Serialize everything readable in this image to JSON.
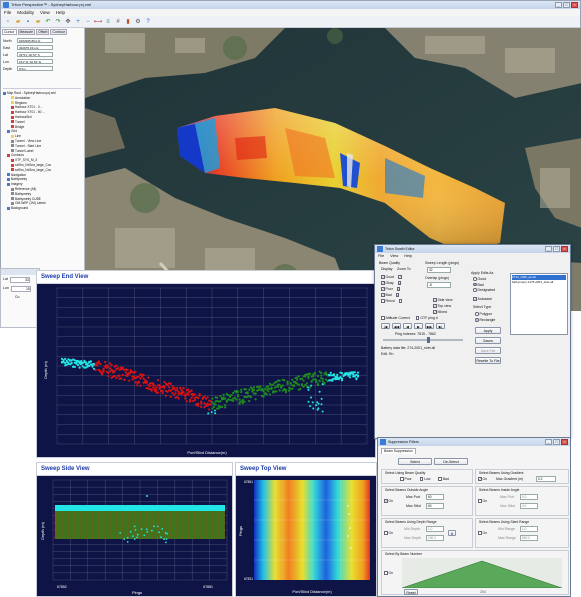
{
  "app": {
    "title": "Triton Perspective™ - SydneyHarbour.prj.xml",
    "menu": [
      "File",
      "Modality",
      "View",
      "Help"
    ],
    "toolbar_icons": [
      "new-icon",
      "open-icon",
      "save-icon",
      "folder-icon",
      "undo-icon",
      "redo-icon",
      "pan-icon",
      "zoom-in-icon",
      "zoom-out-icon",
      "measure-icon",
      "layers-icon",
      "grid-icon",
      "chart-icon",
      "settings-icon",
      "help-icon"
    ],
    "win_buttons": [
      "_",
      "□",
      "×"
    ]
  },
  "left_panel": {
    "tabs": [
      "Cursor",
      "Measure",
      "Offset",
      "Contour"
    ],
    "fields": [
      {
        "label": "North",
        "value": "6252905.89m N"
      },
      {
        "label": "East",
        "value": "332975.15m E"
      },
      {
        "label": "Lat",
        "value": "33°51' 18.70\" S"
      },
      {
        "label": "Lon",
        "value": "151°11' 40.62\" E"
      },
      {
        "label": "Depth",
        "value": "8.5m"
      }
    ],
    "tree": [
      {
        "text": "Map Root - SydneyHarbour.prj.xml",
        "color": "#4a78c8"
      },
      {
        "text": "Annotation",
        "color": "#f0d060"
      },
      {
        "text": "Regions",
        "color": "#f0d060"
      },
      {
        "text": "Harbour XT01 - 3 ...",
        "color": "#d04040"
      },
      {
        "text": "Harbour XT01 - 60 ...",
        "color": "#d04040"
      },
      {
        "text": "HarbourBrd",
        "color": "#d04040"
      },
      {
        "text": "Tunnel",
        "color": "#d04040"
      },
      {
        "text": "Bridge",
        "color": "#d04040"
      },
      {
        "text": "Grid",
        "color": "#4a78c8"
      },
      {
        "text": "Line",
        "color": "#f0d060"
      },
      {
        "text": "Tunnel - View Line",
        "color": "#888888"
      },
      {
        "text": "Tunnel - Start Line",
        "color": "#888888"
      },
      {
        "text": "Tunnel Label",
        "color": "#888888"
      },
      {
        "text": "Contours",
        "color": "#d04040"
      },
      {
        "text": "XTF_SYS_M_3",
        "color": "#d04040"
      },
      {
        "text": "sxf5m_NxSea_large_Cov",
        "color": "#d04040"
      },
      {
        "text": "sxf5m_NxSea_large_Cov",
        "color": "#d04040"
      },
      {
        "text": "Navigation",
        "color": "#4a78c8"
      },
      {
        "text": "Bathymetry",
        "color": "#4a78c8"
      },
      {
        "text": "Imagery",
        "color": "#4a78c8"
      },
      {
        "text": "Reference (All)",
        "color": "#888888"
      },
      {
        "text": "Bathymetry",
        "color": "#888888"
      },
      {
        "text": "Bathymetry CUBE",
        "color": "#888888"
      },
      {
        "text": "OM-WRF (1M) Latest",
        "color": "#888888"
      },
      {
        "text": "Background",
        "color": "#4a78c8"
      }
    ]
  },
  "bottom_left": {
    "rows": [
      {
        "label": "Lat",
        "value": "33"
      },
      {
        "label": "Lon",
        "value": "15"
      },
      {
        "label": "",
        "value": "Cu"
      }
    ]
  },
  "sweep_end": {
    "title": "Sweep End View",
    "ylabel": "Depth (m)",
    "xlabel": "Port/Stbd Distance(m)"
  },
  "sweep_side": {
    "title": "Sweep Side View",
    "ylabel": "Depth (m)",
    "xlabel": "Pings",
    "x_ticks": [
      "67852",
      "67881"
    ]
  },
  "sweep_top": {
    "title": "Sweep Top View",
    "ylabel": "Pings",
    "xlabel": "Port/Stbd Distance(m)",
    "y_ticks": [
      "67831",
      "67861"
    ]
  },
  "swath_editor": {
    "title": "Triton Swath Editor",
    "menu": [
      "File",
      "View",
      "Help"
    ],
    "beam_quality_label": "Beam Quality",
    "display_label": "Display",
    "zoom_label": "Zoom To",
    "qualities": [
      "Good",
      "Okay",
      "Poor",
      "Bad",
      "Rmvd"
    ],
    "sweep_length_label": "Sweep Length (pings)",
    "sweep_length_value": "32",
    "overlap_label": "Overlap (pings)",
    "overlap_value": "-8",
    "views": [
      "Side view",
      "Top view",
      "Mixed"
    ],
    "apply_label": "Apply Edits As",
    "apply_options": [
      "Good",
      "Bad",
      "Designated"
    ],
    "autosave_label": "Autosave",
    "select_type_label": "Select Type",
    "select_types": [
      "Polygon",
      "Rectangle"
    ],
    "buttons": [
      "Apply",
      "Saves",
      "Save File",
      "Rewrite To File"
    ],
    "attitude_label": "Attitude Correct",
    "gtf_label": "GTF ping #",
    "ping_indexes": "Ping Indexes: 7815 - 7862",
    "battery_label": "Battery data file: 274-2001_shet.all",
    "edit_label": "Edit: Rn",
    "files": [
      "2713_c020_e2.all",
      "bathymetry 2175-2001_shet.all"
    ]
  },
  "suppression": {
    "title": "Suppression Filters",
    "tab": "Beam Suppression",
    "select_label": "Select",
    "deselect_label": "De-Select",
    "quality_group": "Select Using Beam Quality",
    "quality_opts": [
      "Poor",
      "Low",
      "Bad"
    ],
    "gradient_group": "Select Beams Using Gradient",
    "gradient_on": "On",
    "gradient_field_label": "Max Gradient (m)",
    "gradient_value": "0.2",
    "outside_group": "Select Beams Outside Angle",
    "inside_group": "Select Beams Inside Angle",
    "on_label": "On",
    "max_port_label": "Max Port",
    "max_port_value": "60",
    "max_stbd_label": "Max Stbd",
    "max_stbd_value": "60",
    "in_port_value": "0.0",
    "in_stbd_value": "0.0",
    "depth_group": "Select Beams Using Depth Range",
    "min_depth_label": "Min Depth",
    "min_depth_value": "1.0",
    "max_depth_label": "Max Depth",
    "max_depth_value": "100.0",
    "unit_label": "ft",
    "slant_group": "Select Beams Using Slant Range",
    "min_range_label": "Min Range",
    "min_range_value": "1.0",
    "max_range_label": "Max Range",
    "max_range_value": "500.0",
    "beam_number_group": "Select By Beam Number",
    "beam_on_label": "On",
    "reset_label": "Reset",
    "beam_min": "0",
    "beam_max": "254"
  },
  "colors": {
    "plot_bg": "#0e1546",
    "cyan": "#22e6e6",
    "red": "#e01010",
    "green": "#1f8a1f",
    "accent": "#1b3aa8"
  }
}
